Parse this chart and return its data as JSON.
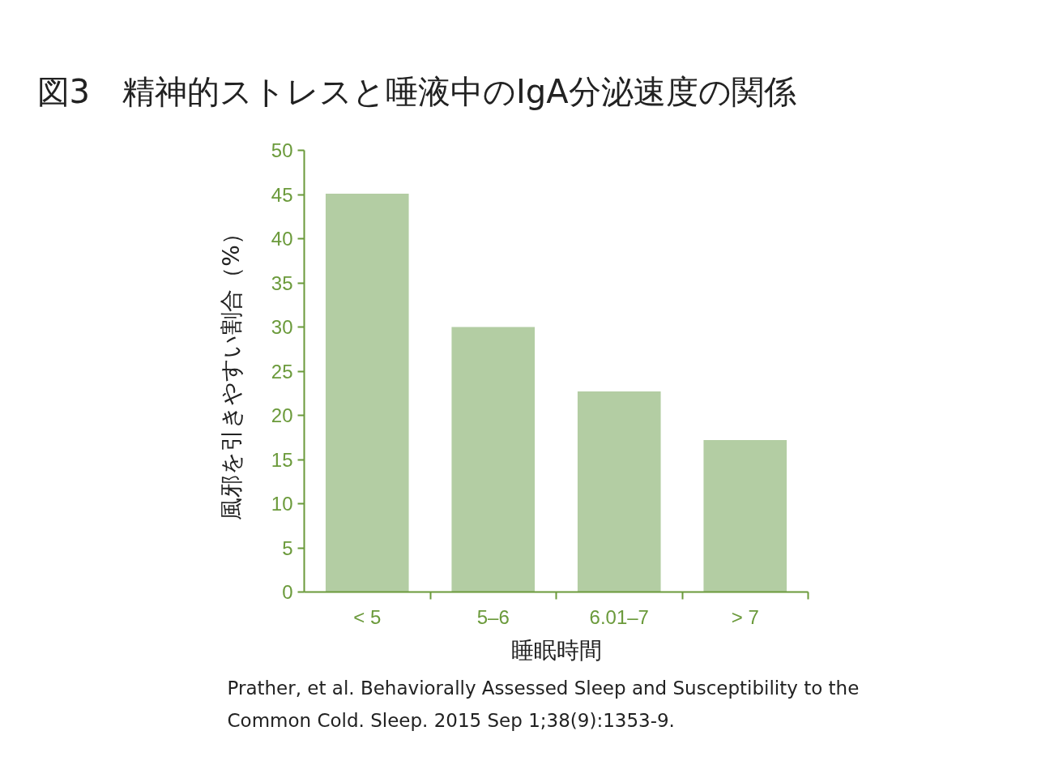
{
  "chart_data": {
    "type": "bar",
    "title": "図3　精神的ストレスと唾液中のIgA分泌速度の関係",
    "xlabel": "睡眠時間",
    "ylabel": "風邪を引きやすい割合（%）",
    "categories": [
      "< 5",
      "5–6",
      "6.01–7",
      "> 7"
    ],
    "values": [
      45.1,
      30,
      22.7,
      17.2
    ],
    "color": "#b3cda3",
    "ylim": [
      0,
      50
    ],
    "yticks": [
      0,
      5,
      10,
      15,
      20,
      25,
      30,
      35,
      40,
      45,
      50
    ],
    "grid": false,
    "annotations": [
      "Prather, et al. Behaviorally Assessed Sleep and Susceptibility to the Common Cold. Sleep. 2015 Sep 1;38(9):1353-9."
    ]
  }
}
